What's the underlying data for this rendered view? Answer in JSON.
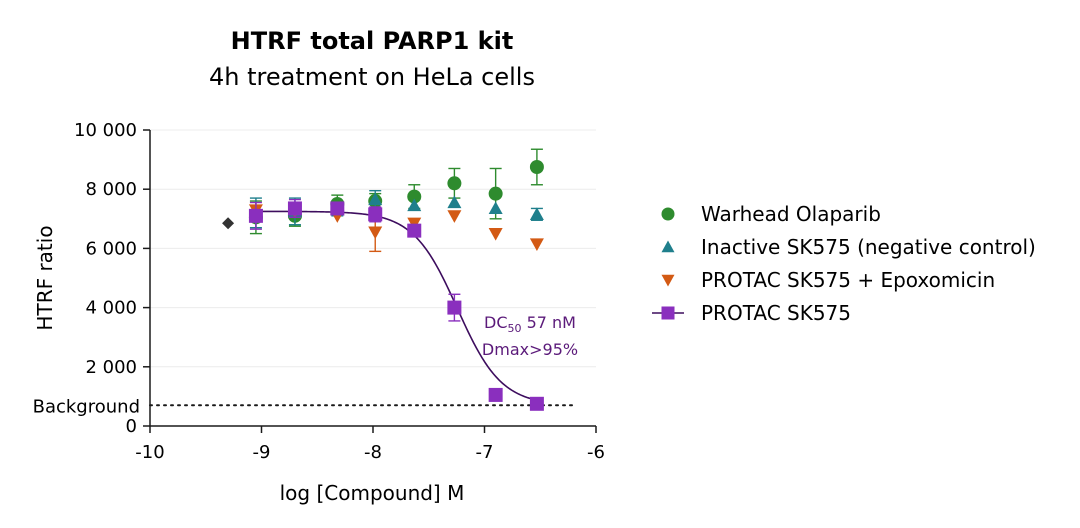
{
  "chart_data": {
    "type": "scatter",
    "title": "HTRF total PARP1 kit",
    "subtitle": "4h treatment on HeLa cells",
    "xlabel": "log [Compound] M",
    "ylabel": "HTRF ratio",
    "xlim": [
      -10,
      -6
    ],
    "ylim": [
      0,
      10000
    ],
    "xticks": [
      -10,
      -9,
      -8,
      -7,
      -6
    ],
    "xtick_labels": [
      "-10",
      "-9",
      "-8",
      "-7",
      "-6"
    ],
    "yticks": [
      0,
      2000,
      4000,
      6000,
      8000,
      10000
    ],
    "ytick_labels": [
      "0",
      "2 000",
      "4 000",
      "6 000",
      "8 000",
      "10 000"
    ],
    "grid": "horizontal",
    "legend_position": "right",
    "background": {
      "label": "Background",
      "value": 700
    },
    "baseline_point": {
      "x": -9.3,
      "y": 6850,
      "color": "#333333"
    },
    "series": [
      {
        "name": "Warhead Olaparib",
        "marker": "circle",
        "color": "#2e8b2e",
        "x": [
          -9.05,
          -8.7,
          -8.32,
          -7.98,
          -7.63,
          -7.27,
          -6.9,
          -6.53
        ],
        "y": [
          7050,
          7100,
          7500,
          7600,
          7750,
          8200,
          7850,
          8750
        ],
        "err": [
          550,
          350,
          300,
          250,
          400,
          500,
          850,
          600
        ]
      },
      {
        "name": "Inactive SK575 (negative control)",
        "marker": "triangle-up",
        "color": "#1f7f8c",
        "x": [
          -9.05,
          -8.7,
          -8.32,
          -7.98,
          -7.63,
          -7.27,
          -6.9,
          -6.53
        ],
        "y": [
          7200,
          7250,
          7300,
          7650,
          7450,
          7550,
          7350,
          7150
        ],
        "err": [
          500,
          450,
          200,
          300,
          0,
          0,
          0,
          200
        ]
      },
      {
        "name": "PROTAC SK575 + Epoxomicin",
        "marker": "triangle-down",
        "color": "#d35a14",
        "x": [
          -9.05,
          -8.7,
          -8.32,
          -7.98,
          -7.63,
          -7.27,
          -6.9,
          -6.53
        ],
        "y": [
          7300,
          7250,
          7100,
          6550,
          6850,
          7100,
          6500,
          6150
        ],
        "err": [
          0,
          0,
          0,
          650,
          0,
          0,
          0,
          0
        ]
      },
      {
        "name": "PROTAC SK575",
        "marker": "square",
        "color": "#8a2fbe",
        "line_color": "#3d0d5e",
        "x": [
          -9.05,
          -8.7,
          -8.32,
          -7.98,
          -7.63,
          -7.27,
          -6.9,
          -6.53
        ],
        "y": [
          7100,
          7350,
          7350,
          7150,
          6600,
          4000,
          1050,
          750
        ],
        "err": [
          450,
          300,
          0,
          250,
          0,
          450,
          0,
          0
        ],
        "fit": {
          "top": 7250,
          "bottom": 700,
          "log_ec50": -7.244,
          "hill": 2.2
        }
      }
    ],
    "annotations": [
      {
        "base": "DC",
        "sub": "50",
        "rest": " 57 nM"
      },
      {
        "text": "Dmax>95%"
      }
    ]
  }
}
